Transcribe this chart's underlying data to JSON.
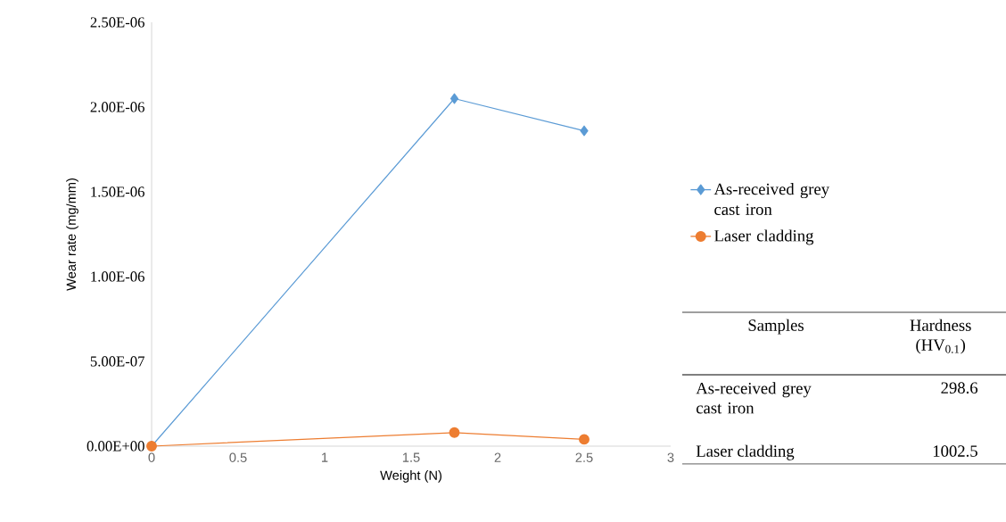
{
  "chart_data": {
    "type": "line",
    "xlabel": "Weight (N)",
    "ylabel": "Wear rate (mg/mm)",
    "x": [
      0,
      1.75,
      2.5
    ],
    "series": [
      {
        "name": "As-received grey cast iron",
        "color": "#5b9bd5",
        "marker": "diamond",
        "values": [
          0,
          2.05e-06,
          1.86e-06
        ]
      },
      {
        "name": "Laser cladding",
        "color": "#ed7d31",
        "marker": "circle",
        "values": [
          0,
          8e-08,
          4e-08
        ]
      }
    ],
    "xlim": [
      0,
      3
    ],
    "xticks": [
      0,
      0.5,
      1,
      1.5,
      2,
      2.5,
      3
    ],
    "ylim": [
      0,
      2.5e-06
    ],
    "yticks": [
      {
        "value": 0,
        "label": "0.00E+00"
      },
      {
        "value": 5e-07,
        "label": "5.00E-07"
      },
      {
        "value": 1e-06,
        "label": "1.00E-06"
      },
      {
        "value": 1.5e-06,
        "label": "1.50E-06"
      },
      {
        "value": 2e-06,
        "label": "2.00E-06"
      },
      {
        "value": 2.5e-06,
        "label": "2.50E-06"
      }
    ],
    "grid": false,
    "legend": "right",
    "line_style": "solid",
    "annotations": [
      "Samples",
      "Hardness (HV$_{0.1}$)",
      "As-received grey cast iron",
      "298.6",
      "Laser cladding",
      "1002.5"
    ]
  }
}
